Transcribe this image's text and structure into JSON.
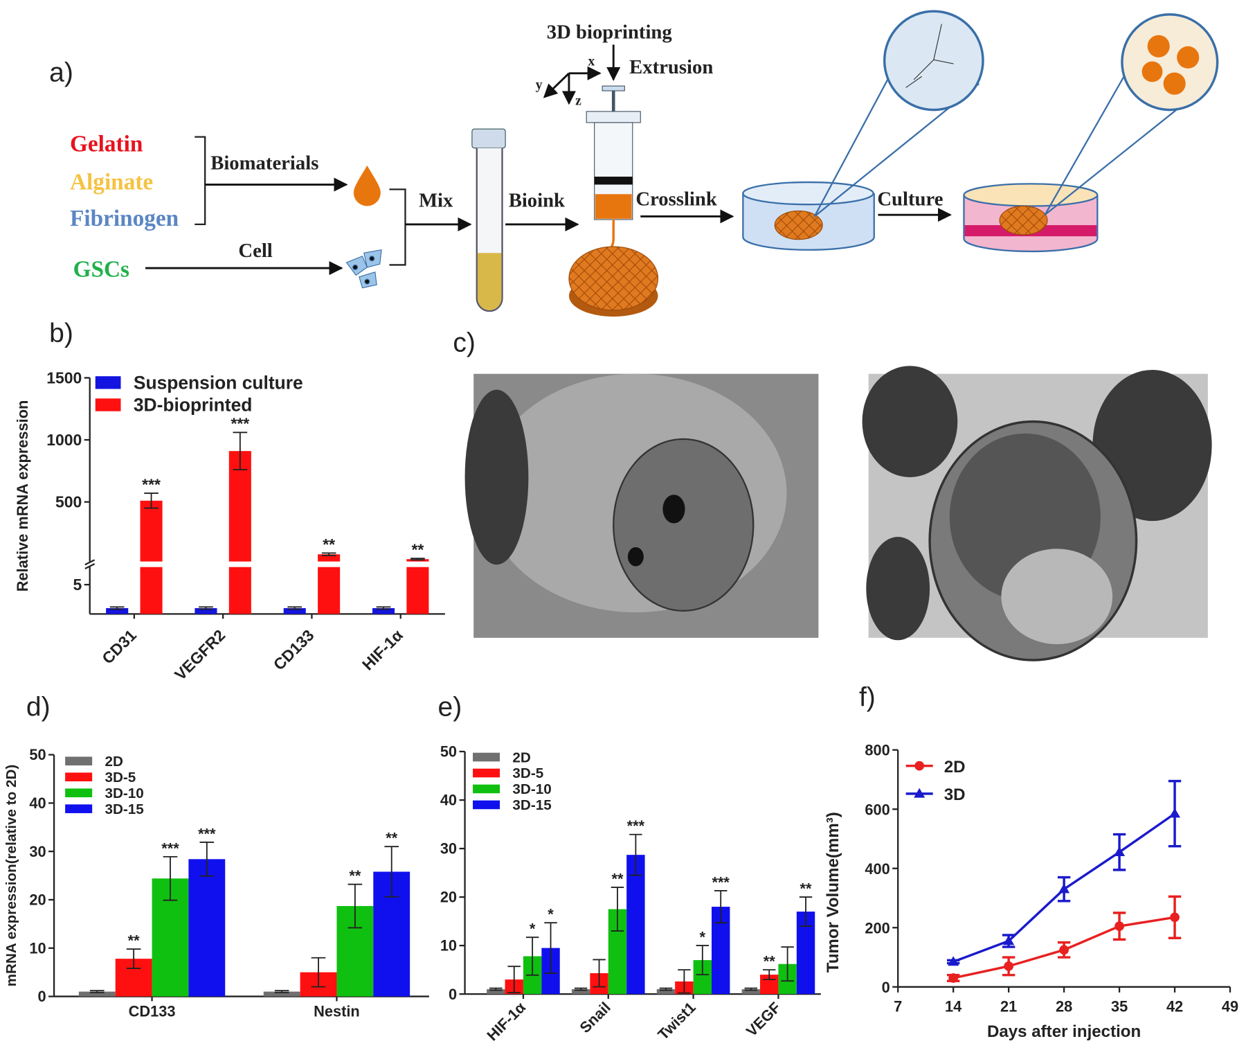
{
  "figure": {
    "panel_labels": [
      "a)",
      "b)",
      "c)",
      "d)",
      "e)",
      "f)"
    ]
  },
  "diagram": {
    "gelatin": "Gelatin",
    "alginate": "Alginate",
    "fibrinogen": "Fibrinogen",
    "gscs": "GSCs",
    "biomaterials": "Biomaterials",
    "cell": "Cell",
    "mix": "Mix",
    "bioink": "Bioink",
    "crosslink": "Crosslink",
    "culture": "Culture",
    "bioprinting": "3D bioprinting",
    "extrusion": "Extrusion",
    "axis_x": "x",
    "axis_y": "y",
    "axis_z": "z"
  },
  "chart_data": [
    {
      "type": "bar",
      "y_label": "Relative mRNA expression",
      "categories": [
        "CD31",
        "VEGFR2",
        "CD133",
        "HIF-1α"
      ],
      "series": [
        {
          "name": "Suspension culture",
          "color": "#1414e0",
          "values": [
            1,
            1,
            1,
            1
          ],
          "errors": [
            0.2,
            0.2,
            0.2,
            0.2
          ],
          "significance": [
            null,
            null,
            null,
            null
          ]
        },
        {
          "name": "3D-bioprinted",
          "color": "#ff1010",
          "values": [
            510,
            910,
            78,
            39
          ],
          "errors": [
            60,
            150,
            10,
            6
          ],
          "significance": [
            "***",
            "***",
            "**",
            "**"
          ]
        }
      ],
      "ylim": [
        0,
        1500
      ],
      "ybreak": [
        8,
        20
      ],
      "yticks": [
        5,
        500,
        1000,
        1500
      ],
      "legend": "upper left"
    },
    {
      "type": "bar",
      "y_label": "mRNA expression(relative to 2D)",
      "categories": [
        "CD133",
        "Nestin"
      ],
      "series": [
        {
          "name": "2D",
          "color": "#707070",
          "values": [
            1,
            1
          ],
          "errors": [
            0.2,
            0.2
          ],
          "significance": [
            null,
            null
          ]
        },
        {
          "name": "3D-5",
          "color": "#ff1010",
          "values": [
            7.8,
            5
          ],
          "errors": [
            2,
            3
          ],
          "significance": [
            "**",
            null
          ]
        },
        {
          "name": "3D-10",
          "color": "#10c010",
          "values": [
            24.4,
            18.7
          ],
          "errors": [
            4.5,
            4.5
          ],
          "significance": [
            "***",
            "**"
          ]
        },
        {
          "name": "3D-15",
          "color": "#1010ee",
          "values": [
            28.4,
            25.8
          ],
          "errors": [
            3.5,
            5.2
          ],
          "significance": [
            "***",
            "**"
          ]
        }
      ],
      "ylim": [
        0,
        50
      ],
      "yticks": [
        0,
        10,
        20,
        30,
        40,
        50
      ],
      "legend": "upper left"
    },
    {
      "type": "bar",
      "categories": [
        "HIF-1α",
        "Snail",
        "Twist1",
        "VEGF"
      ],
      "series": [
        {
          "name": "2D",
          "color": "#707070",
          "values": [
            1,
            1,
            1,
            1
          ],
          "errors": [
            0.2,
            0.2,
            0.2,
            0.2
          ],
          "significance": [
            null,
            null,
            null,
            null
          ]
        },
        {
          "name": "3D-5",
          "color": "#ff1010",
          "values": [
            3,
            4.3,
            2.6,
            4
          ],
          "errors": [
            2.7,
            2.8,
            2.4,
            1
          ],
          "significance": [
            null,
            null,
            null,
            "**"
          ]
        },
        {
          "name": "3D-10",
          "color": "#10c010",
          "values": [
            7.8,
            17.5,
            7,
            6.2
          ],
          "errors": [
            3.9,
            4.5,
            3,
            3.5
          ],
          "significance": [
            "*",
            "**",
            "*",
            null
          ]
        },
        {
          "name": "3D-15",
          "color": "#1010ee",
          "values": [
            9.5,
            28.7,
            18,
            17
          ],
          "errors": [
            5.2,
            4.2,
            3.3,
            3
          ],
          "significance": [
            "*",
            "***",
            "***",
            "**"
          ]
        }
      ],
      "ylim": [
        0,
        50
      ],
      "yticks": [
        0,
        10,
        20,
        30,
        40,
        50
      ],
      "legend": "upper left"
    },
    {
      "type": "line",
      "x_label": "Days after injection",
      "y_label": "Tumor Volume(mm³)",
      "x": [
        14,
        21,
        28,
        35,
        42
      ],
      "series": [
        {
          "name": "2D",
          "color": "#e82020",
          "marker": "circle",
          "values": [
            30,
            70,
            125,
            205,
            235
          ],
          "errors": [
            10,
            30,
            25,
            45,
            70
          ]
        },
        {
          "name": "3D",
          "color": "#1a1acc",
          "marker": "triangle",
          "values": [
            85,
            155,
            330,
            455,
            585
          ],
          "errors": [
            5,
            20,
            40,
            60,
            110
          ]
        }
      ],
      "xlim": [
        7,
        49
      ],
      "xticks": [
        7,
        14,
        21,
        28,
        35,
        42,
        49
      ],
      "ylim": [
        0,
        800
      ],
      "yticks": [
        0,
        200,
        400,
        600,
        800
      ],
      "legend": "upper left"
    }
  ]
}
